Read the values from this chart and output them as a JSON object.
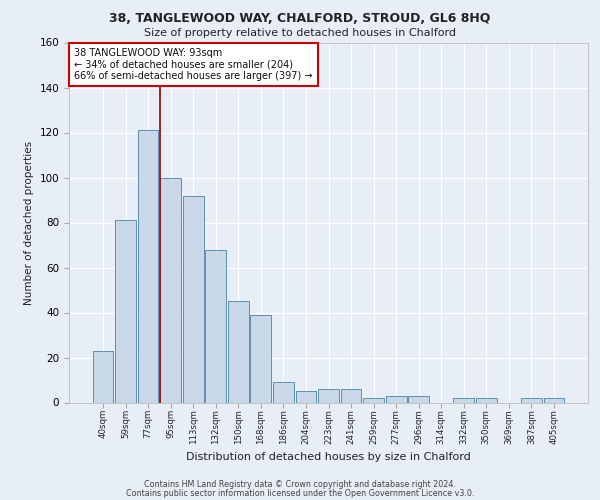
{
  "title1": "38, TANGLEWOOD WAY, CHALFORD, STROUD, GL6 8HQ",
  "title2": "Size of property relative to detached houses in Chalford",
  "xlabel": "Distribution of detached houses by size in Chalford",
  "ylabel": "Number of detached properties",
  "bin_labels": [
    "40sqm",
    "59sqm",
    "77sqm",
    "95sqm",
    "113sqm",
    "132sqm",
    "150sqm",
    "168sqm",
    "186sqm",
    "204sqm",
    "223sqm",
    "241sqm",
    "259sqm",
    "277sqm",
    "296sqm",
    "314sqm",
    "332sqm",
    "350sqm",
    "369sqm",
    "387sqm",
    "405sqm"
  ],
  "bar_heights": [
    23,
    81,
    121,
    100,
    92,
    68,
    45,
    39,
    9,
    5,
    6,
    6,
    2,
    3,
    3,
    0,
    2,
    2,
    0,
    2,
    2
  ],
  "bar_color": "#c8d8e8",
  "bar_edge_color": "#6090b0",
  "ylim": [
    0,
    160
  ],
  "yticks": [
    0,
    20,
    40,
    60,
    80,
    100,
    120,
    140,
    160
  ],
  "vline_bin_index": 2.52,
  "annotation_title": "38 TANGLEWOOD WAY: 93sqm",
  "annotation_line1": "← 34% of detached houses are smaller (204)",
  "annotation_line2": "66% of semi-detached houses are larger (397) →",
  "footer1": "Contains HM Land Registry data © Crown copyright and database right 2024.",
  "footer2": "Contains public sector information licensed under the Open Government Licence v3.0.",
  "bg_color": "#e8eef5",
  "plot_bg_color": "#e8eef5",
  "grid_color": "#ffffff",
  "vline_color": "#990000"
}
